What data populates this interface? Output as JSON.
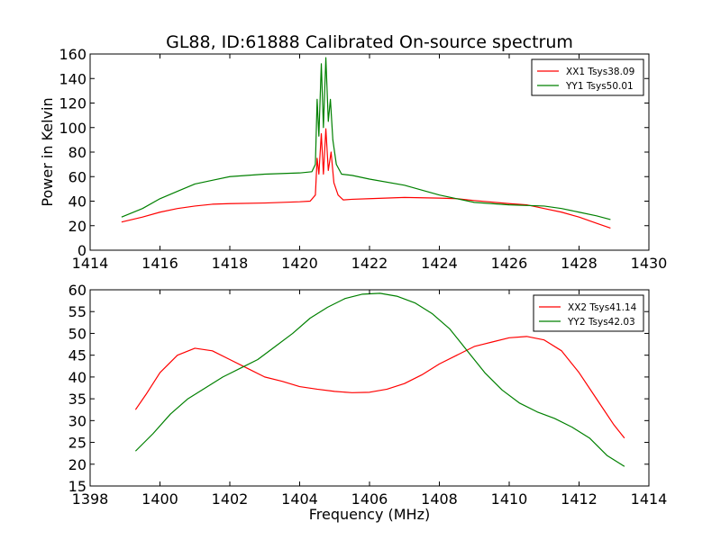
{
  "chart_data": [
    {
      "type": "line",
      "title": "GL88, ID:61888 Calibrated On-source spectrum",
      "xlabel": "",
      "ylabel": "Power in Kelvin",
      "xlim": [
        1414,
        1430
      ],
      "ylim": [
        0,
        160
      ],
      "xticks": [
        1414,
        1416,
        1418,
        1420,
        1422,
        1424,
        1426,
        1428,
        1430
      ],
      "yticks": [
        0,
        20,
        40,
        60,
        80,
        100,
        120,
        140,
        160
      ],
      "legend_position": "top-right",
      "grid": false,
      "series": [
        {
          "name": "XX1 Tsys38.09",
          "color": "#ff0000",
          "points": [
            [
              1414.9,
              23
            ],
            [
              1415.5,
              27
            ],
            [
              1416,
              31
            ],
            [
              1416.5,
              34
            ],
            [
              1417,
              36
            ],
            [
              1417.5,
              37.5
            ],
            [
              1418,
              38
            ],
            [
              1419,
              38.5
            ],
            [
              1420,
              39.5
            ],
            [
              1420.3,
              40
            ],
            [
              1420.45,
              45
            ],
            [
              1420.5,
              75
            ],
            [
              1420.55,
              62
            ],
            [
              1420.62,
              95
            ],
            [
              1420.68,
              62
            ],
            [
              1420.75,
              99
            ],
            [
              1420.82,
              65
            ],
            [
              1420.9,
              80
            ],
            [
              1420.98,
              55
            ],
            [
              1421.1,
              45
            ],
            [
              1421.25,
              41
            ],
            [
              1421.5,
              41.5
            ],
            [
              1422,
              42
            ],
            [
              1423,
              43
            ],
            [
              1424,
              42.5
            ],
            [
              1424.5,
              42
            ],
            [
              1425,
              40.5
            ],
            [
              1426,
              38
            ],
            [
              1426.5,
              37
            ],
            [
              1427,
              34
            ],
            [
              1427.5,
              31
            ],
            [
              1428,
              27
            ],
            [
              1428.5,
              22
            ],
            [
              1428.9,
              18
            ]
          ]
        },
        {
          "name": "YY1 Tsys50.01",
          "color": "#008000",
          "points": [
            [
              1414.9,
              27
            ],
            [
              1415.5,
              34
            ],
            [
              1416,
              42
            ],
            [
              1416.5,
              48
            ],
            [
              1417,
              54
            ],
            [
              1417.5,
              57
            ],
            [
              1418,
              60
            ],
            [
              1419,
              62
            ],
            [
              1420,
              63
            ],
            [
              1420.35,
              64
            ],
            [
              1420.45,
              70
            ],
            [
              1420.5,
              123
            ],
            [
              1420.55,
              93
            ],
            [
              1420.62,
              152
            ],
            [
              1420.68,
              100
            ],
            [
              1420.75,
              157
            ],
            [
              1420.82,
              105
            ],
            [
              1420.88,
              123
            ],
            [
              1420.95,
              90
            ],
            [
              1421.05,
              70
            ],
            [
              1421.2,
              62
            ],
            [
              1421.5,
              61
            ],
            [
              1422,
              58
            ],
            [
              1423,
              53
            ],
            [
              1424,
              45
            ],
            [
              1424.5,
              42
            ],
            [
              1425,
              39
            ],
            [
              1426,
              37
            ],
            [
              1427,
              36
            ],
            [
              1427.5,
              34
            ],
            [
              1428,
              31
            ],
            [
              1428.5,
              28
            ],
            [
              1428.9,
              25
            ]
          ]
        }
      ]
    },
    {
      "type": "line",
      "title": "",
      "xlabel": "Frequency (MHz)",
      "ylabel": "",
      "xlim": [
        1398,
        1414
      ],
      "ylim": [
        15,
        60
      ],
      "xticks": [
        1398,
        1400,
        1402,
        1404,
        1406,
        1408,
        1410,
        1412,
        1414
      ],
      "yticks": [
        15,
        20,
        25,
        30,
        35,
        40,
        45,
        50,
        55,
        60
      ],
      "legend_position": "top-right",
      "grid": false,
      "series": [
        {
          "name": "XX2 Tsys41.14",
          "color": "#ff0000",
          "points": [
            [
              1399.3,
              32.5
            ],
            [
              1399.6,
              36
            ],
            [
              1400,
              41
            ],
            [
              1400.5,
              45
            ],
            [
              1401,
              46.6
            ],
            [
              1401.5,
              46
            ],
            [
              1402,
              44
            ],
            [
              1402.5,
              42
            ],
            [
              1403,
              40
            ],
            [
              1403.5,
              39
            ],
            [
              1404,
              37.8
            ],
            [
              1404.5,
              37.2
            ],
            [
              1405,
              36.7
            ],
            [
              1405.5,
              36.4
            ],
            [
              1406,
              36.5
            ],
            [
              1406.5,
              37.2
            ],
            [
              1407,
              38.5
            ],
            [
              1407.5,
              40.5
            ],
            [
              1408,
              43
            ],
            [
              1408.5,
              45
            ],
            [
              1409,
              47
            ],
            [
              1409.5,
              48
            ],
            [
              1410,
              49
            ],
            [
              1410.5,
              49.3
            ],
            [
              1411,
              48.5
            ],
            [
              1411.5,
              46
            ],
            [
              1412,
              41
            ],
            [
              1412.5,
              35
            ],
            [
              1413,
              29
            ],
            [
              1413.3,
              26
            ]
          ]
        },
        {
          "name": "YY2 Tsys42.03",
          "color": "#008000",
          "points": [
            [
              1399.3,
              23
            ],
            [
              1399.8,
              27
            ],
            [
              1400.3,
              31.5
            ],
            [
              1400.8,
              35
            ],
            [
              1401.3,
              37.5
            ],
            [
              1401.8,
              40
            ],
            [
              1402.3,
              42
            ],
            [
              1402.8,
              44
            ],
            [
              1403.3,
              47
            ],
            [
              1403.8,
              50
            ],
            [
              1404.3,
              53.5
            ],
            [
              1404.8,
              56
            ],
            [
              1405.3,
              58
            ],
            [
              1405.8,
              59
            ],
            [
              1406.3,
              59.2
            ],
            [
              1406.8,
              58.5
            ],
            [
              1407.3,
              57
            ],
            [
              1407.8,
              54.5
            ],
            [
              1408.3,
              51
            ],
            [
              1408.8,
              46
            ],
            [
              1409.3,
              41
            ],
            [
              1409.8,
              37
            ],
            [
              1410.3,
              34
            ],
            [
              1410.8,
              32
            ],
            [
              1411.3,
              30.5
            ],
            [
              1411.8,
              28.5
            ],
            [
              1412.3,
              26
            ],
            [
              1412.8,
              22
            ],
            [
              1413.3,
              19.5
            ]
          ]
        }
      ]
    }
  ]
}
